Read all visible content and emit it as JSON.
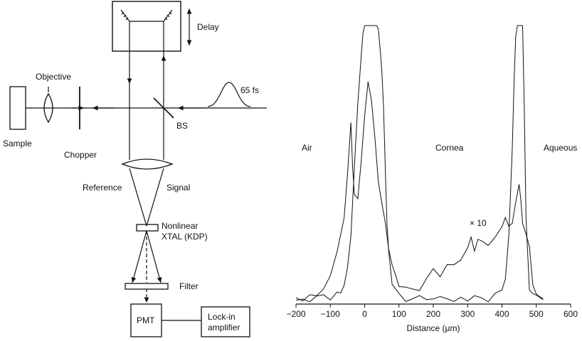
{
  "diagram": {
    "labels": {
      "delay": "Delay",
      "objective": "Objective",
      "pulse": "65 fs",
      "bs": "BS",
      "sample": "Sample",
      "chopper": "Chopper",
      "reference": "Reference",
      "signal": "Signal",
      "crystal_line1": "Nonlinear",
      "crystal_line2": "XTAL (KDP)",
      "filter": "Filter",
      "pmt": "PMT",
      "lockin_line1": "Lock-in",
      "lockin_line2": "amplifier"
    }
  },
  "chart_data": {
    "type": "line",
    "xlabel": "Distance (μm)",
    "xlim": [
      -200,
      600
    ],
    "x_ticks": [
      "−200",
      "−100",
      "0",
      "100",
      "200",
      "300",
      "400",
      "500",
      "600"
    ],
    "x_tick_values": [
      -200,
      -100,
      0,
      100,
      200,
      300,
      400,
      500,
      600
    ],
    "ylim": [
      0,
      100
    ],
    "annotations": {
      "air": "Air",
      "cornea": "Cornea",
      "aqueous": "Aqueous",
      "scale": "× 10"
    },
    "series": [
      {
        "x": [
          -200,
          -180,
          -160,
          -140,
          -120,
          -100,
          -80,
          -70,
          -60,
          -50,
          -40,
          -30,
          -20,
          -10,
          -5,
          0,
          5,
          10,
          15,
          20,
          25,
          30,
          35,
          40,
          45,
          50,
          55,
          60,
          65,
          70,
          80,
          100,
          120,
          140,
          160,
          180,
          200,
          220,
          240,
          260,
          280,
          300,
          320,
          340,
          360,
          380,
          400,
          410,
          420,
          430,
          435,
          440,
          445,
          450,
          455,
          460,
          465,
          470,
          480,
          490,
          500,
          520
        ],
        "y": [
          1.5,
          1.5,
          1.8,
          1.5,
          2,
          2.5,
          3,
          4,
          6,
          12,
          25,
          48,
          72,
          90,
          97,
          100,
          100,
          100,
          100,
          100,
          100,
          100,
          100,
          98,
          92,
          85,
          70,
          50,
          30,
          18,
          8,
          3,
          2,
          2,
          2,
          2,
          2,
          2,
          2,
          2,
          2,
          2,
          2,
          2,
          2,
          2.5,
          4,
          8,
          25,
          55,
          80,
          95,
          100,
          100,
          100,
          100,
          70,
          30,
          6,
          3,
          2,
          2
        ]
      },
      {
        "x": [
          -200,
          -180,
          -160,
          -140,
          -120,
          -100,
          -80,
          -60,
          -50,
          -40,
          -35,
          -30,
          -20,
          -10,
          0,
          10,
          20,
          30,
          40,
          50,
          60,
          70,
          80,
          90,
          100,
          120,
          140,
          160,
          180,
          200,
          220,
          240,
          260,
          280,
          300,
          310,
          320,
          330,
          340,
          360,
          380,
          400,
          410,
          420,
          430,
          440,
          450,
          455,
          460,
          470,
          480,
          490,
          500,
          510,
          520
        ],
        "y": [
          1.5,
          2,
          3,
          4,
          6,
          10,
          20,
          32,
          48,
          65,
          50,
          40,
          38,
          50,
          68,
          80,
          72,
          60,
          45,
          36,
          28,
          20,
          14,
          10,
          7,
          5,
          5,
          6,
          8,
          12,
          11,
          13,
          14,
          17,
          20,
          25,
          19,
          22,
          23,
          21,
          25,
          28,
          32,
          27,
          30,
          37,
          42,
          38,
          30,
          26,
          20,
          8,
          4,
          2,
          1.5
        ]
      }
    ]
  }
}
